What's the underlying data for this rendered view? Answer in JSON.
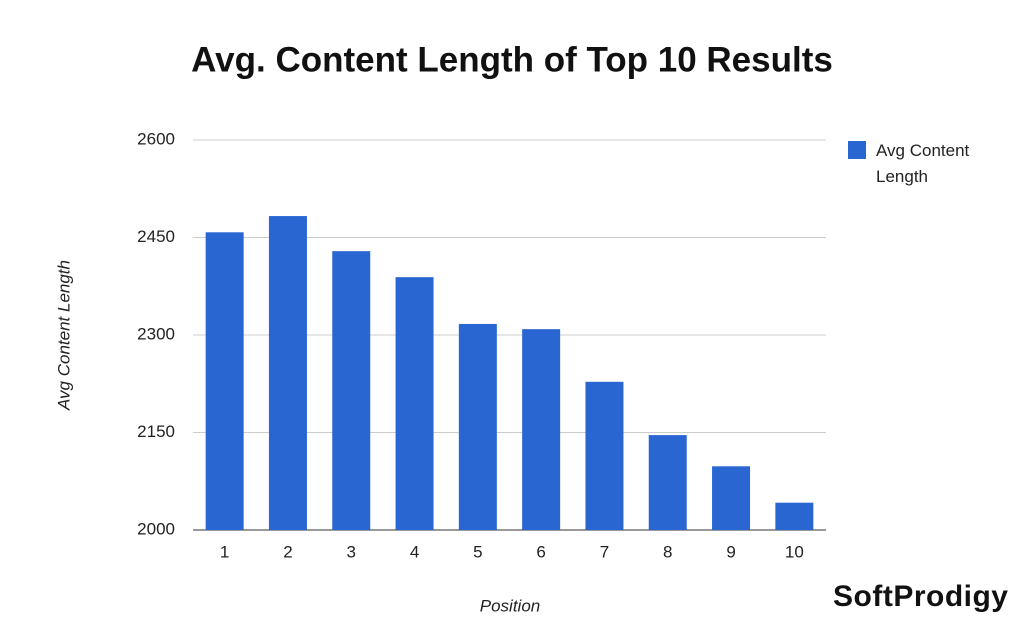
{
  "chart_data": {
    "type": "bar",
    "title": "Avg. Content Length of Top 10 Results",
    "x_label": "Position",
    "y_label": "Avg Content Length",
    "categories": [
      "1",
      "2",
      "3",
      "4",
      "5",
      "6",
      "7",
      "8",
      "9",
      "10"
    ],
    "series": [
      {
        "name": "Avg Content Length",
        "color": "#2a66d1",
        "values": [
          2458,
          2483,
          2429,
          2389,
          2317,
          2309,
          2228,
          2146,
          2098,
          2042
        ]
      }
    ],
    "ylim": [
      2000,
      2600
    ],
    "yticks": [
      2000,
      2150,
      2300,
      2450,
      2600
    ],
    "grid": true,
    "legend": "right"
  },
  "watermark": "SoftProdigy"
}
